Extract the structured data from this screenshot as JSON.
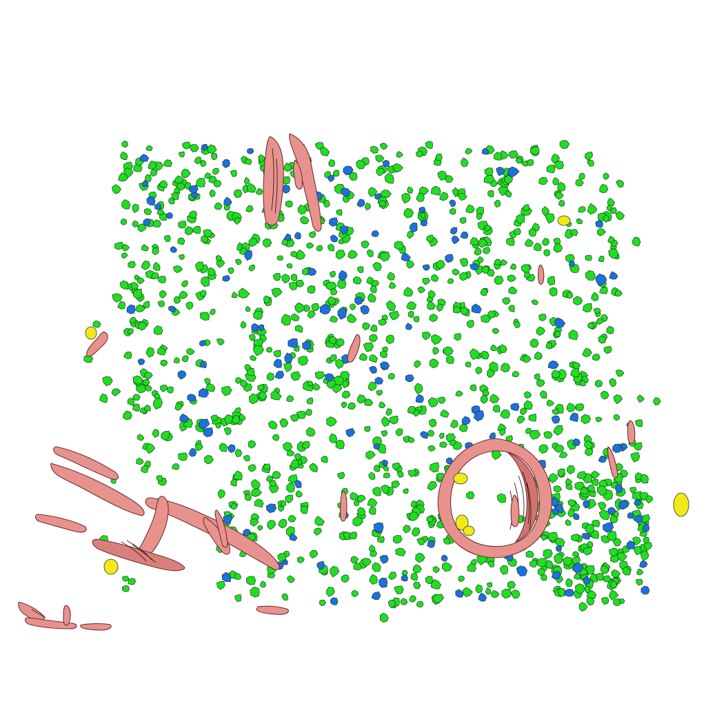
{
  "scene": {
    "background_color": "#ffffff",
    "object_classes": [
      {
        "key": "green",
        "fill": "#22dd22",
        "shape": "cell-blob"
      },
      {
        "key": "blue",
        "fill": "#1e6fe0",
        "shape": "nucleus-blob"
      },
      {
        "key": "yellow",
        "fill": "#f2e81a",
        "shape": "yellow-blob"
      },
      {
        "key": "pink",
        "fill": "#e8928e",
        "shade": "#d27470",
        "shape": "vessel-segment"
      }
    ]
  }
}
